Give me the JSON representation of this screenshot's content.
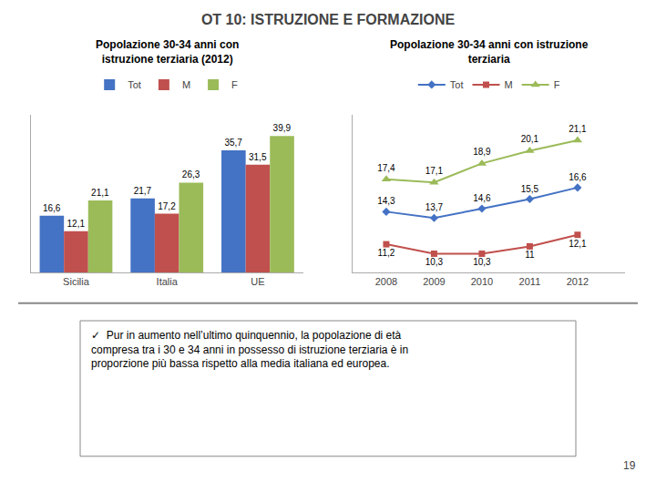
{
  "title": "OT 10: ISTRUZIONE E FORMAZIONE",
  "annotations": [
    "✓  Pur in aumento nell’ultimo quinquennio, la popolazione di età\ncompresa tra i 30 e 34 anni in possesso di istruzione terziaria è in\nproporzione più bassa rispetto alla media italiana ed europea.",
    "19"
  ],
  "chart_data": [
    {
      "type": "bar",
      "title": "Popolazione 30-34 anni con\nistruzione terziaria (2012)",
      "categories": [
        "Sicilia",
        "Italia",
        "UE"
      ],
      "series": [
        {
          "name": "Tot",
          "color": "#4472C4",
          "values": [
            16.6,
            21.7,
            35.7
          ],
          "value_labels": [
            "16,6",
            "21,7",
            "35,7"
          ]
        },
        {
          "name": "M",
          "color": "#C0504D",
          "values": [
            12.1,
            17.2,
            31.5
          ],
          "value_labels": [
            "12,1",
            "17,2",
            "31,5"
          ]
        },
        {
          "name": "F",
          "color": "#9BBB59",
          "values": [
            21.1,
            26.3,
            39.9
          ],
          "value_labels": [
            "21,1",
            "26,3",
            "39,9"
          ]
        }
      ],
      "ylim": [
        0,
        46
      ],
      "grid": false,
      "legend": "top",
      "data_labels": true,
      "tick_labels": "x"
    },
    {
      "type": "line",
      "title": "Popolazione 30-34 anni con istruzione\nterziaria",
      "x": [
        2008,
        2009,
        2010,
        2011,
        2012
      ],
      "series": [
        {
          "name": "Tot",
          "color": "#4472C4",
          "marker": "diamond",
          "values": [
            14.3,
            13.7,
            14.6,
            15.5,
            16.6
          ],
          "value_labels": [
            "14,3",
            "13,7",
            "14,6",
            "15,5",
            "16,6"
          ]
        },
        {
          "name": "M",
          "color": "#C0504D",
          "marker": "square",
          "values": [
            11.2,
            10.3,
            10.3,
            11.0,
            12.1
          ],
          "value_labels": [
            "11,2",
            "10,3",
            "10,3",
            "11",
            "12,1"
          ]
        },
        {
          "name": "F",
          "color": "#9BBB59",
          "marker": "triangle-up",
          "values": [
            17.4,
            17.1,
            18.9,
            20.1,
            21.1
          ],
          "value_labels": [
            "17,4",
            "17,1",
            "18,9",
            "20,1",
            "21,1"
          ]
        }
      ],
      "xlim": [
        2007.3,
        2013.0
      ],
      "xticks": [
        2008,
        2009,
        2010,
        2011,
        2012
      ],
      "ylim": [
        8.5,
        23.5
      ],
      "grid": false,
      "legend": "top",
      "data_labels": true,
      "tick_labels": "x"
    }
  ]
}
